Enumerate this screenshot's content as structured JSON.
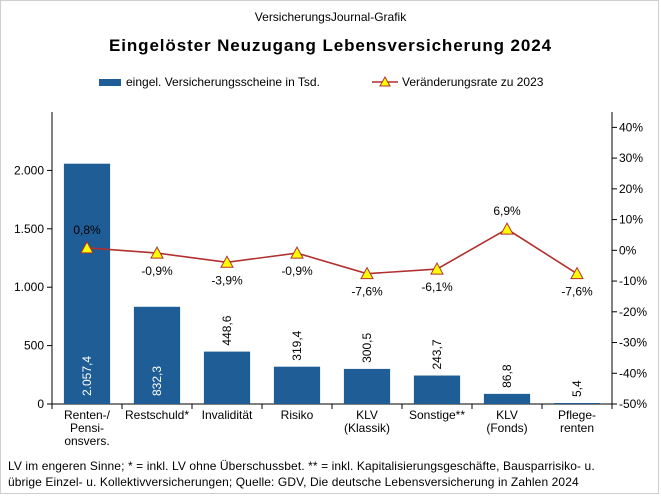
{
  "header": {
    "source_line": "VersicherungsJournal-Grafik",
    "title": "Eingelöster Neuzugang Lebensversicherung 2024"
  },
  "legend": {
    "bar_label": "eingel. Versicherungsscheine in Tsd.",
    "line_label": "Veränderungsrate zu 2023"
  },
  "footnote": {
    "line1": "LV im engeren Sinne; * = inkl. LV ohne Überschussbet. ** = inkl. Kapitalisierungsgeschäfte,  Bausparrisiko- u.",
    "line2": "übrige Einzel- u. Kollektivversicherungen;  Quelle: GDV, Die deutsche Lebensversicherung  in Zahlen 2024"
  },
  "colors": {
    "bar": "#1f5d96",
    "line": "#b0312f",
    "marker_fill": "#ffff00",
    "marker_stroke": "#b0312f"
  },
  "chart_data": {
    "type": "bar",
    "categories": [
      [
        "Renten-/",
        "Pensi-",
        "onsvers."
      ],
      [
        "Restschuld*"
      ],
      [
        "Invalidität"
      ],
      [
        "Risiko"
      ],
      [
        "KLV",
        "(Klassik)"
      ],
      [
        "Sonstige**"
      ],
      [
        "KLV",
        "(Fonds)"
      ],
      [
        "Pflege-",
        "renten"
      ]
    ],
    "series": [
      {
        "name": "eingel. Versicherungsscheine in Tsd.",
        "type": "bar",
        "axis": "left",
        "values": [
          2057.4,
          832.3,
          448.6,
          319.4,
          300.5,
          243.7,
          86.8,
          5.4
        ],
        "labels": [
          "2.057,4",
          "832,3",
          "448,6",
          "319,4",
          "300,5",
          "243,7",
          "86,8",
          "5,4"
        ]
      },
      {
        "name": "Veränderungsrate zu 2023",
        "type": "line",
        "axis": "right",
        "values": [
          0.8,
          -0.9,
          -3.9,
          -0.9,
          -7.6,
          -6.1,
          6.9,
          -7.6
        ],
        "labels": [
          "0,8%",
          "-0,9%",
          "-3,9%",
          "-0,9%",
          "-7,6%",
          "-6,1%",
          "6,9%",
          "-7,6%"
        ]
      }
    ],
    "y_left": {
      "min": 0,
      "max": 2500,
      "ticks": [
        0,
        500,
        1000,
        1500,
        2000
      ],
      "tick_labels": [
        "0",
        "500",
        "1.000",
        "1.500",
        "2.000"
      ]
    },
    "y_right": {
      "min": -50,
      "max": 45,
      "ticks": [
        -50,
        -40,
        -30,
        -20,
        -10,
        0,
        10,
        20,
        30,
        40
      ],
      "tick_labels": [
        "-50%",
        "-40%",
        "-30%",
        "-20%",
        "-10%",
        "0%",
        "10%",
        "20%",
        "30%",
        "40%"
      ]
    },
    "grid": false,
    "legend_position": "top"
  }
}
